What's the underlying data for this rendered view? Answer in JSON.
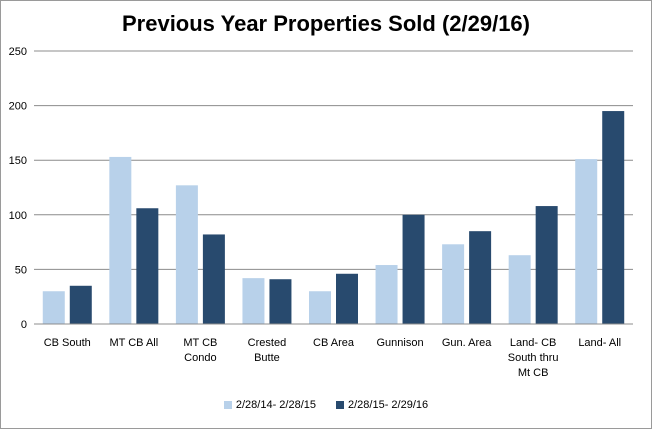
{
  "chart_data": {
    "type": "bar",
    "title": "Previous Year Properties Sold (2/29/16)",
    "xlabel": "",
    "ylabel": "",
    "ylim": [
      0,
      250
    ],
    "yticks": [
      0,
      50,
      100,
      150,
      200,
      250
    ],
    "grid": true,
    "legend_position": "bottom",
    "categories": [
      "CB South",
      "MT CB All",
      "MT CB Condo",
      "Crested Butte",
      "CB Area",
      "Gunnison",
      "Gun. Area",
      "Land- CB South thru Mt CB",
      "Land- All"
    ],
    "category_lines": [
      [
        "CB South"
      ],
      [
        "MT CB All"
      ],
      [
        "MT CB",
        "Condo"
      ],
      [
        "Crested",
        "Butte"
      ],
      [
        "CB Area"
      ],
      [
        "Gunnison"
      ],
      [
        "Gun. Area"
      ],
      [
        "Land- CB",
        "South thru",
        "Mt CB"
      ],
      [
        "Land- All"
      ]
    ],
    "series": [
      {
        "name": "2/28/14- 2/28/15",
        "color": "#b8d1ea",
        "values": [
          30,
          153,
          127,
          42,
          30,
          54,
          73,
          63,
          151
        ]
      },
      {
        "name": "2/28/15- 2/29/16",
        "color": "#284a6e",
        "values": [
          35,
          106,
          82,
          41,
          46,
          100,
          85,
          108,
          195
        ]
      }
    ]
  }
}
